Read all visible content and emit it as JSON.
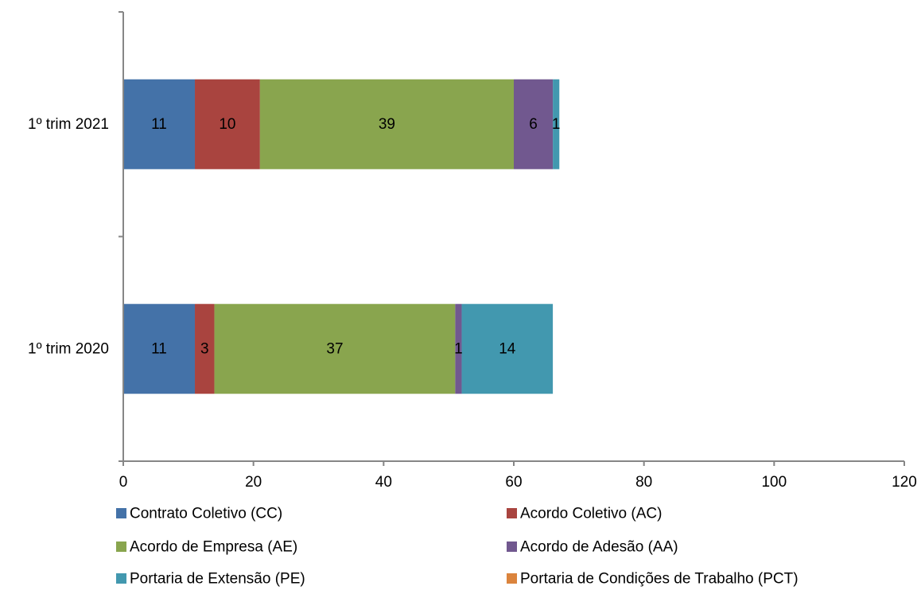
{
  "chart_data": {
    "type": "bar",
    "orientation": "horizontal",
    "stacked": true,
    "categories": [
      "1º trim 2020",
      "1º trim 2021"
    ],
    "series": [
      {
        "name": "Contrato Coletivo (CC)",
        "values": [
          11,
          11
        ],
        "color": "#4472A8"
      },
      {
        "name": "Acordo Coletivo  (AC)",
        "values": [
          3,
          10
        ],
        "color": "#A9443F"
      },
      {
        "name": "Acordo de Empresa (AE)",
        "values": [
          37,
          39
        ],
        "color": "#89A54E"
      },
      {
        "name": "Acordo de Adesão (AA)",
        "values": [
          1,
          6
        ],
        "color": "#71588F"
      },
      {
        "name": "Portaria de Extensão (PE)",
        "values": [
          14,
          1
        ],
        "color": "#4298AF"
      },
      {
        "name": "Portaria de Condições de Trabalho (PCT)",
        "values": [
          0,
          0
        ],
        "color": "#DB843D"
      }
    ],
    "xlim": [
      0,
      120
    ],
    "xticks": [
      "0",
      "20",
      "40",
      "60",
      "80",
      "100",
      "120"
    ],
    "grid": false,
    "legend_position": "bottom"
  }
}
